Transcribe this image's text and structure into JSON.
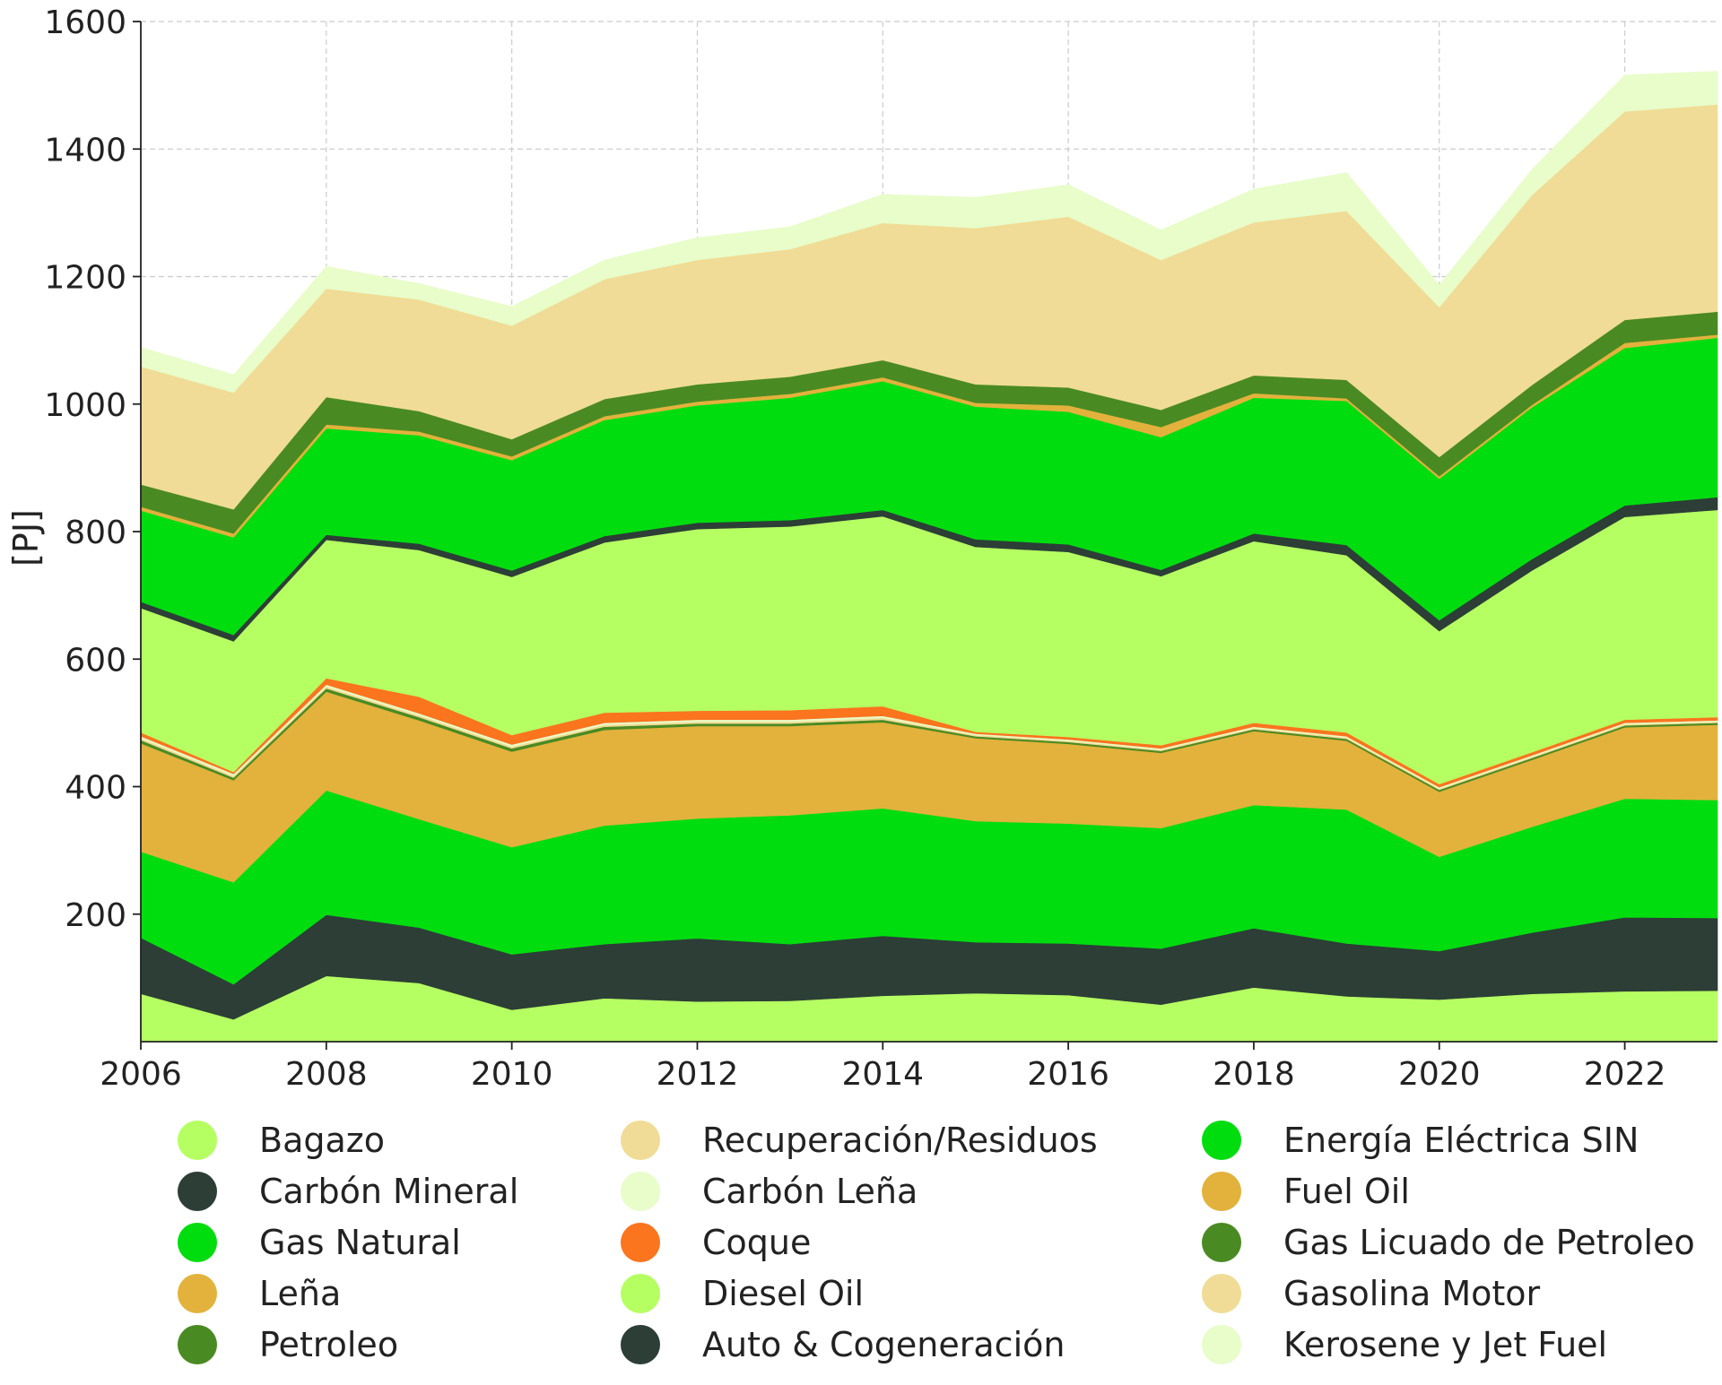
{
  "chart_data": {
    "type": "area",
    "stacked": true,
    "ylabel": "[PJ]",
    "xlabel": "",
    "xlim": [
      2006,
      2023
    ],
    "ylim": [
      0,
      1600
    ],
    "xticks": [
      2006,
      2008,
      2010,
      2012,
      2014,
      2016,
      2018,
      2020,
      2022
    ],
    "yticks": [
      200,
      400,
      600,
      800,
      1000,
      1200,
      1400,
      1600
    ],
    "grid": true,
    "legend_position": "bottom",
    "x": [
      2006,
      2007,
      2008,
      2009,
      2010,
      2011,
      2012,
      2013,
      2014,
      2015,
      2016,
      2017,
      2018,
      2019,
      2020,
      2021,
      2022,
      2023
    ],
    "series": [
      {
        "name": "Bagazo",
        "color": "#b6ff63",
        "values": [
          75,
          35,
          103,
          92,
          50,
          68,
          63,
          64,
          72,
          76,
          73,
          58,
          85,
          71,
          66,
          75,
          79,
          80
        ]
      },
      {
        "name": "Carbón Mineral",
        "color": "#2c3e36",
        "values": [
          88,
          55,
          96,
          87,
          87,
          85,
          99,
          89,
          94,
          80,
          81,
          88,
          93,
          83,
          76,
          96,
          116,
          114
        ]
      },
      {
        "name": "Gas Natural",
        "color": "#00dd0f",
        "values": [
          135,
          160,
          195,
          170,
          168,
          186,
          188,
          202,
          200,
          190,
          188,
          189,
          193,
          210,
          148,
          166,
          186,
          185
        ]
      },
      {
        "name": "Leña",
        "color": "#e2b23c",
        "values": [
          170,
          160,
          155,
          155,
          150,
          150,
          145,
          140,
          135,
          130,
          125,
          118,
          116,
          108,
          102,
          105,
          112,
          118
        ]
      },
      {
        "name": "Petroleo",
        "color": "#4a8a23",
        "values": [
          5,
          4,
          5,
          5,
          5,
          5,
          4,
          4,
          4,
          3,
          3,
          3,
          3,
          3,
          3,
          3,
          3,
          3
        ]
      },
      {
        "name": "Recuperación/Residuos",
        "color": "#f0dc96",
        "values": [
          3,
          3,
          3,
          3,
          3,
          3,
          3,
          3,
          3,
          2,
          2,
          2,
          2,
          2,
          2,
          2,
          2,
          2
        ]
      },
      {
        "name": "Carbón Leña",
        "color": "#e8fdc9",
        "values": [
          3,
          3,
          3,
          3,
          3,
          3,
          3,
          3,
          3,
          2,
          2,
          2,
          2,
          2,
          2,
          2,
          2,
          2
        ]
      },
      {
        "name": "Coque",
        "color": "#fb741e",
        "values": [
          6,
          3,
          10,
          26,
          15,
          16,
          14,
          15,
          15,
          3,
          4,
          5,
          6,
          6,
          5,
          5,
          5,
          5
        ]
      },
      {
        "name": "Diesel Oil",
        "color": "#b6ff63",
        "values": [
          195,
          205,
          217,
          230,
          248,
          267,
          285,
          288,
          298,
          290,
          290,
          265,
          285,
          278,
          240,
          285,
          318,
          325
        ]
      },
      {
        "name": "Auto & Cogeneración",
        "color": "#2c3e36",
        "values": [
          10,
          10,
          8,
          10,
          10,
          10,
          10,
          10,
          10,
          12,
          12,
          10,
          12,
          16,
          17,
          18,
          18,
          20
        ]
      },
      {
        "name": "Energía Eléctrica SIN",
        "color": "#00dd0f",
        "values": [
          143,
          153,
          167,
          170,
          173,
          182,
          184,
          192,
          202,
          208,
          208,
          208,
          213,
          226,
          222,
          238,
          247,
          250
        ]
      },
      {
        "name": "Fuel Oil",
        "color": "#e2b23c",
        "values": [
          6,
          6,
          6,
          6,
          6,
          6,
          6,
          6,
          6,
          6,
          10,
          16,
          7,
          4,
          4,
          4,
          8,
          5
        ]
      },
      {
        "name": "Gas Licuado de Petroleo",
        "color": "#4a8a23",
        "values": [
          35,
          38,
          43,
          32,
          27,
          27,
          27,
          27,
          27,
          29,
          28,
          27,
          28,
          29,
          30,
          31,
          36,
          36
        ]
      },
      {
        "name": "Gasolina Motor",
        "color": "#f0dc96",
        "values": [
          185,
          183,
          170,
          175,
          178,
          188,
          195,
          200,
          215,
          245,
          268,
          235,
          240,
          265,
          235,
          298,
          327,
          325
        ]
      },
      {
        "name": "Kerosene y Jet Fuel",
        "color": "#e8fdc9",
        "values": [
          30,
          28,
          35,
          25,
          30,
          30,
          35,
          35,
          45,
          48,
          50,
          47,
          52,
          60,
          35,
          40,
          57,
          52
        ]
      }
    ],
    "legend_order": [
      "Bagazo",
      "Carbón Mineral",
      "Gas Natural",
      "Leña",
      "Petroleo",
      "Recuperación/Residuos",
      "Carbón Leña",
      "Coque",
      "Diesel Oil",
      "Auto & Cogeneración",
      "Energía Eléctrica SIN",
      "Fuel Oil",
      "Gas Licuado de Petroleo",
      "Gasolina Motor",
      "Kerosene y Jet Fuel"
    ]
  }
}
